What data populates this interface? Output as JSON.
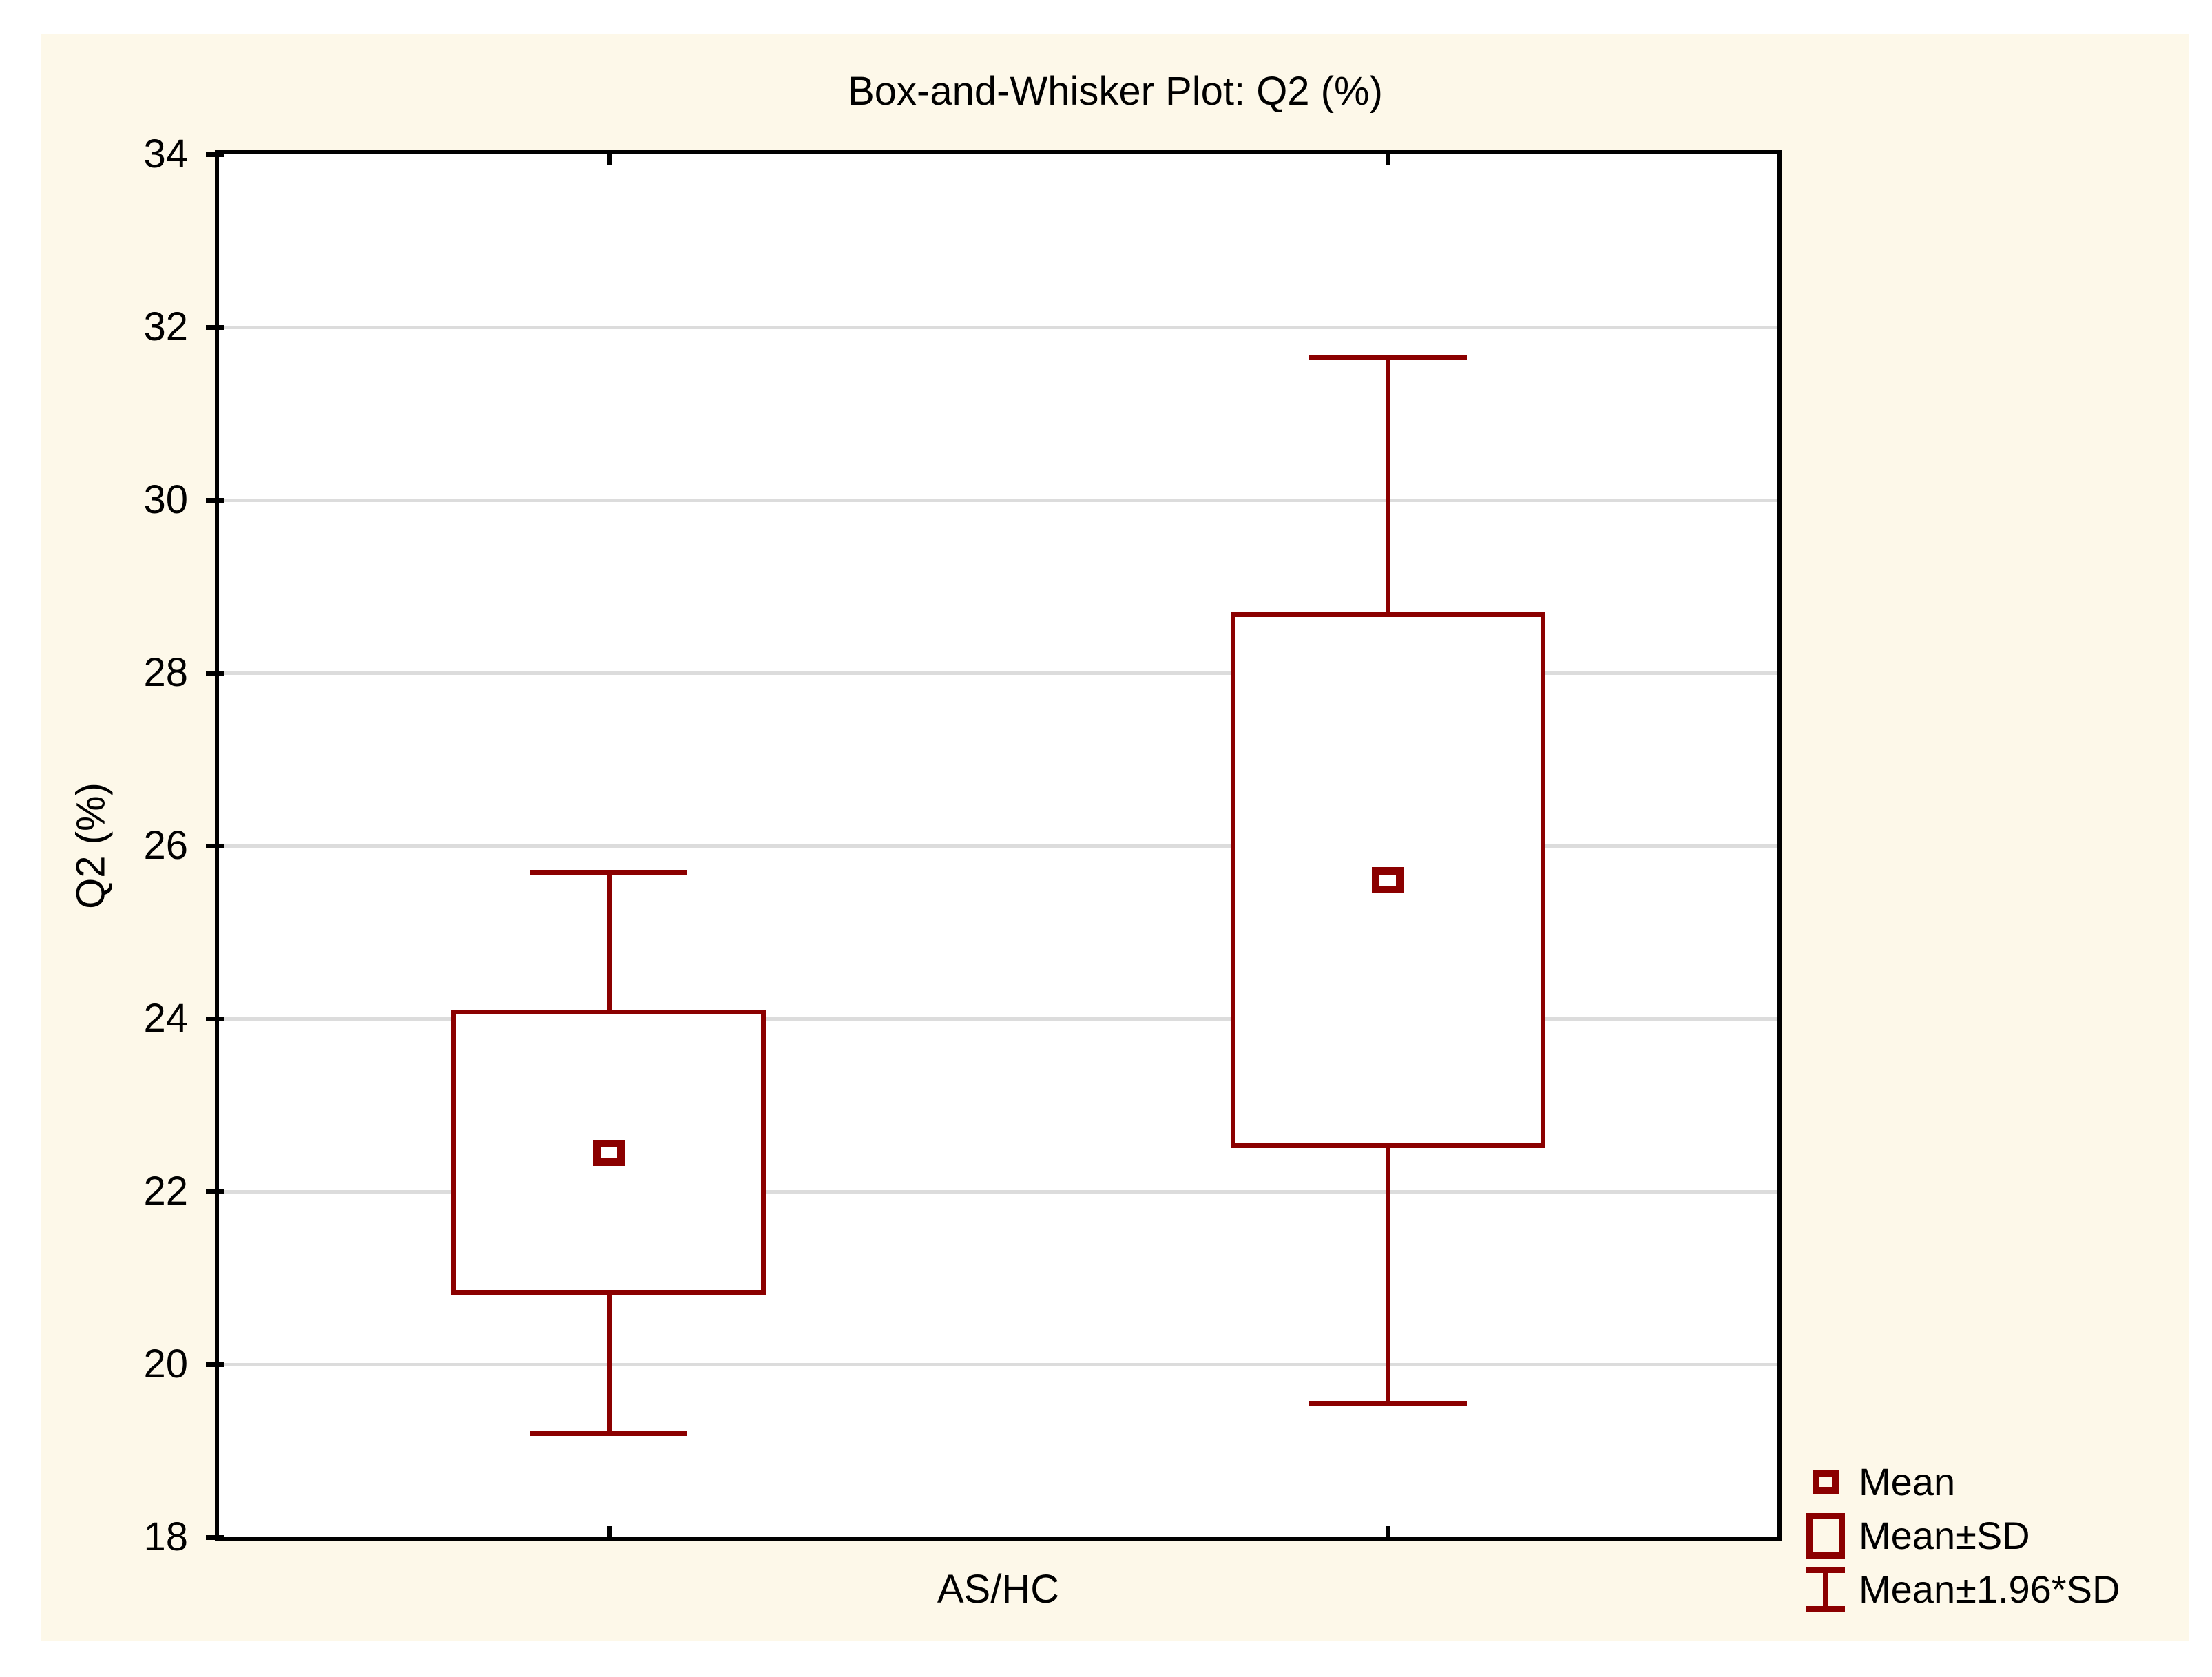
{
  "chart_data": {
    "type": "box",
    "title": "Box-and-Whisker Plot: Q2 (%)",
    "xlabel": "AS/HC",
    "ylabel": "Q2 (%)",
    "ylim": [
      18,
      34
    ],
    "yticks": [
      18,
      20,
      22,
      24,
      26,
      28,
      30,
      32,
      34
    ],
    "grid": "horizontal-on",
    "legend_position": "bottom-right",
    "box_width_frac": 0.202,
    "groups": [
      {
        "mean": 22.45,
        "sd": 1.65,
        "box_low": 20.8,
        "box_high": 24.1,
        "whisker_low": 19.2,
        "whisker_high": 25.7
      },
      {
        "mean": 25.6,
        "sd": 3.1,
        "box_low": 22.5,
        "box_high": 28.7,
        "whisker_low": 19.55,
        "whisker_high": 31.65
      }
    ],
    "legend": [
      {
        "symbol": "mean-square",
        "label": "Mean"
      },
      {
        "symbol": "box-rectangle",
        "label": "Mean±SD"
      },
      {
        "symbol": "whisker-ibeam",
        "label": "Mean±1.96*SD"
      }
    ],
    "colors": {
      "series": "#8b0000",
      "grid": "#dcdcdc",
      "frame": "#000000",
      "plot_bg": "#ffffff",
      "canvas_bg": "#fdf8e9",
      "page_bg": "#ffffff",
      "text": "#000000"
    }
  }
}
